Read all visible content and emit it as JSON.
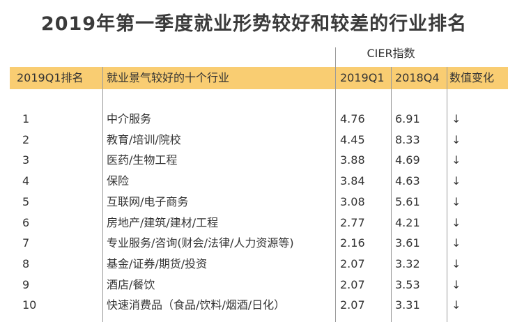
{
  "title": "2019年第一季度就业形势较好和较差的行业排名",
  "group_header": "CIER指数",
  "columns": [
    "2019Q1排名",
    "就业景气较好的十个行业",
    "2019Q1",
    "2018Q4",
    "数值变化"
  ],
  "rows": [
    [
      1,
      "中介服务",
      4.76,
      6.91,
      "↓"
    ],
    [
      2,
      "教育/培训/院校",
      4.45,
      8.33,
      "↓"
    ],
    [
      3,
      "医药/生物工程",
      3.88,
      4.69,
      "↓"
    ],
    [
      4,
      "保险",
      3.84,
      4.63,
      "↓"
    ],
    [
      5,
      "互联网/电子商务",
      3.08,
      5.61,
      "↓"
    ],
    [
      6,
      "房地产/建筑/建材/工程",
      2.77,
      4.21,
      "↓"
    ],
    [
      7,
      "专业服务/咨询(财会/法律/人力资源等)",
      2.16,
      3.61,
      "↓"
    ],
    [
      8,
      "基金/证券/期货/投资",
      2.07,
      3.32,
      "↓"
    ],
    [
      9,
      "酒店/餐饮",
      2.07,
      3.53,
      "↓"
    ],
    [
      10,
      "快速消费品（食品/饮料/烟酒/日化）",
      2.07,
      3.31,
      "↓"
    ]
  ]
}
